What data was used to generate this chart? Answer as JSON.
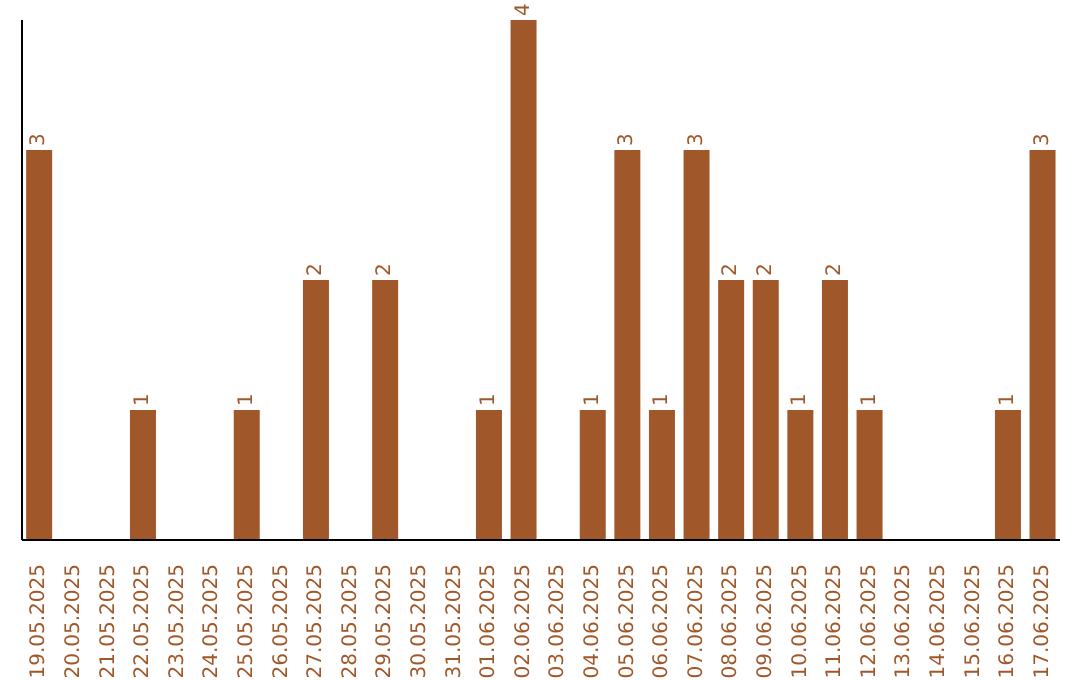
{
  "chart_data": {
    "type": "bar",
    "categories": [
      "19.05.2025",
      "20.05.2025",
      "21.05.2025",
      "22.05.2025",
      "23.05.2025",
      "24.05.2025",
      "25.05.2025",
      "26.05.2025",
      "27.05.2025",
      "28.05.2025",
      "29.05.2025",
      "30.05.2025",
      "31.05.2025",
      "01.06.2025",
      "02.06.2025",
      "03.06.2025",
      "04.06.2025",
      "05.06.2025",
      "06.06.2025",
      "07.06.2025",
      "08.06.2025",
      "09.06.2025",
      "10.06.2025",
      "11.06.2025",
      "12.06.2025",
      "13.06.2025",
      "14.06.2025",
      "15.06.2025",
      "16.06.2025",
      "17.06.2025"
    ],
    "values": [
      3,
      0,
      0,
      1,
      0,
      0,
      1,
      0,
      2,
      0,
      2,
      0,
      0,
      1,
      4,
      0,
      1,
      3,
      1,
      3,
      2,
      2,
      1,
      2,
      1,
      0,
      0,
      0,
      1,
      3
    ],
    "value_labels": [
      "3",
      null,
      null,
      "1",
      null,
      null,
      "1",
      null,
      "2",
      null,
      "2",
      null,
      null,
      "1",
      "4",
      null,
      "1",
      "3",
      "1",
      "3",
      "2",
      "2",
      "1",
      "2",
      "1",
      null,
      null,
      null,
      "1",
      "3"
    ],
    "color": "#a0582a",
    "tick_labels": "x"
  }
}
